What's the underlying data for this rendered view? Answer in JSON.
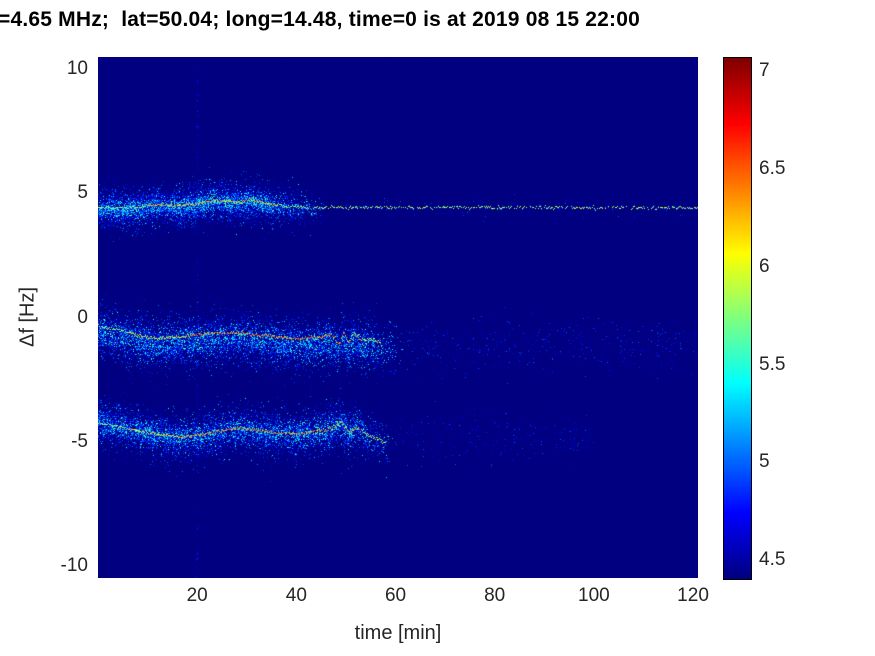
{
  "chart_data": {
    "type": "heatmap",
    "title": "=4.65 MHz;  lat=50.04; long=14.48, time=0 is at 2019 08 15 22:00",
    "xlabel": "time [min]",
    "ylabel": "Δf [Hz]",
    "xlim": [
      0,
      121
    ],
    "ylim": [
      -10.5,
      10.5
    ],
    "xticks": [
      20,
      40,
      60,
      80,
      100,
      120
    ],
    "yticks": [
      10,
      5,
      0,
      -5,
      -10
    ],
    "colormap": "jet",
    "value_range": [
      4.41,
      7.07
    ],
    "colorbar_ticks": [
      4.5,
      5,
      5.5,
      6,
      6.5,
      7
    ],
    "background_value": 4.41,
    "ridges": [
      {
        "name": "upper-trace-4.5Hz",
        "t_end": 121,
        "points": [
          [
            0,
            4.45
          ],
          [
            4,
            4.4
          ],
          [
            8,
            4.45
          ],
          [
            12,
            4.55
          ],
          [
            16,
            4.5
          ],
          [
            20,
            4.6
          ],
          [
            24,
            4.72
          ],
          [
            28,
            4.65
          ],
          [
            31,
            4.75
          ],
          [
            34,
            4.6
          ],
          [
            38,
            4.5
          ],
          [
            42,
            4.43
          ],
          [
            121,
            4.43
          ]
        ],
        "segments": [
          {
            "t": [
              0,
              10
            ],
            "v": 5.75
          },
          {
            "t": [
              10,
              36
            ],
            "v": 6.2
          },
          {
            "t": [
              36,
              42
            ],
            "v": 5.7
          },
          {
            "t": [
              42,
              121
            ],
            "v": 5.8,
            "dash": true
          }
        ]
      },
      {
        "name": "center-trace-0Hz",
        "t_end": 57,
        "points": [
          [
            0,
            -0.35
          ],
          [
            4,
            -0.5
          ],
          [
            8,
            -0.7
          ],
          [
            12,
            -0.85
          ],
          [
            16,
            -0.8
          ],
          [
            20,
            -0.7
          ],
          [
            24,
            -0.62
          ],
          [
            28,
            -0.6
          ],
          [
            32,
            -0.7
          ],
          [
            36,
            -0.8
          ],
          [
            40,
            -0.85
          ],
          [
            44,
            -0.8
          ],
          [
            47,
            -0.72
          ],
          [
            48.5,
            -1.1
          ],
          [
            49.5,
            -0.6
          ],
          [
            50.5,
            -1.05
          ],
          [
            51.5,
            -0.65
          ],
          [
            53,
            -0.9
          ],
          [
            55,
            -0.85
          ],
          [
            57,
            -1.0
          ]
        ],
        "segments": [
          {
            "t": [
              0,
              6
            ],
            "v": 5.7
          },
          {
            "t": [
              6,
              18
            ],
            "v": 6.1
          },
          {
            "t": [
              18,
              46
            ],
            "v": 6.45
          },
          {
            "t": [
              46,
              53
            ],
            "v": 6.3
          },
          {
            "t": [
              53,
              57
            ],
            "v": 5.9
          }
        ]
      },
      {
        "name": "lower-trace-minus4.5Hz",
        "t_end": 58,
        "points": [
          [
            0,
            -4.25
          ],
          [
            4,
            -4.4
          ],
          [
            8,
            -4.55
          ],
          [
            12,
            -4.7
          ],
          [
            16,
            -4.8
          ],
          [
            20,
            -4.75
          ],
          [
            24,
            -4.6
          ],
          [
            28,
            -4.45
          ],
          [
            32,
            -4.55
          ],
          [
            36,
            -4.65
          ],
          [
            40,
            -4.7
          ],
          [
            44,
            -4.6
          ],
          [
            47,
            -4.45
          ],
          [
            49,
            -4.2
          ],
          [
            50.5,
            -4.65
          ],
          [
            52,
            -4.4
          ],
          [
            54,
            -4.7
          ],
          [
            56,
            -4.9
          ],
          [
            58,
            -5.05
          ]
        ],
        "segments": [
          {
            "t": [
              0,
              6
            ],
            "v": 5.7
          },
          {
            "t": [
              6,
              16
            ],
            "v": 6.05
          },
          {
            "t": [
              16,
              46
            ],
            "v": 6.4
          },
          {
            "t": [
              46,
              53
            ],
            "v": 6.25
          },
          {
            "t": [
              53,
              58
            ],
            "v": 5.85
          }
        ]
      }
    ],
    "bands": [
      {
        "name": "upper-sideband-cloud",
        "ridge": 0,
        "t_dense": [
          0,
          46
        ],
        "taper_from": 32,
        "n_dense": 9000,
        "sigma": 0.42,
        "center_offset": -0.05,
        "value_spread": 0.6,
        "sprinkle_n": 2200,
        "sprinkle_sigma": 0.18,
        "tail": {
          "t": [
            46,
            121
          ],
          "n": 260,
          "center": 4.42,
          "sigma": 0.22
        }
      },
      {
        "name": "carrier-cloud",
        "ridge": 1,
        "t_dense": [
          0,
          62
        ],
        "taper_from": 52,
        "n_dense": 11000,
        "sigma": 0.55,
        "center_offset": -0.25,
        "value_spread": 0.6,
        "sprinkle_n": 2400,
        "sprinkle_sigma": 0.28,
        "tail": {
          "t": [
            62,
            121
          ],
          "n": 1200,
          "center": -1.15,
          "sigma": 0.55
        }
      },
      {
        "name": "lower-sideband-cloud",
        "ridge": 2,
        "t_dense": [
          0,
          60
        ],
        "taper_from": 50,
        "n_dense": 10000,
        "sigma": 0.5,
        "center_offset": -0.05,
        "value_spread": 0.6,
        "sprinkle_n": 2200,
        "sprinkle_sigma": 0.25,
        "tail": {
          "t": [
            60,
            100
          ],
          "n": 650,
          "center": -4.8,
          "sigma": 0.5
        }
      }
    ],
    "vertical_artifact": {
      "time": 20,
      "n": 170,
      "value": [
        4.47,
        4.85
      ]
    },
    "scatter_noise": {
      "n": 250,
      "value": [
        4.45,
        4.62
      ]
    }
  }
}
